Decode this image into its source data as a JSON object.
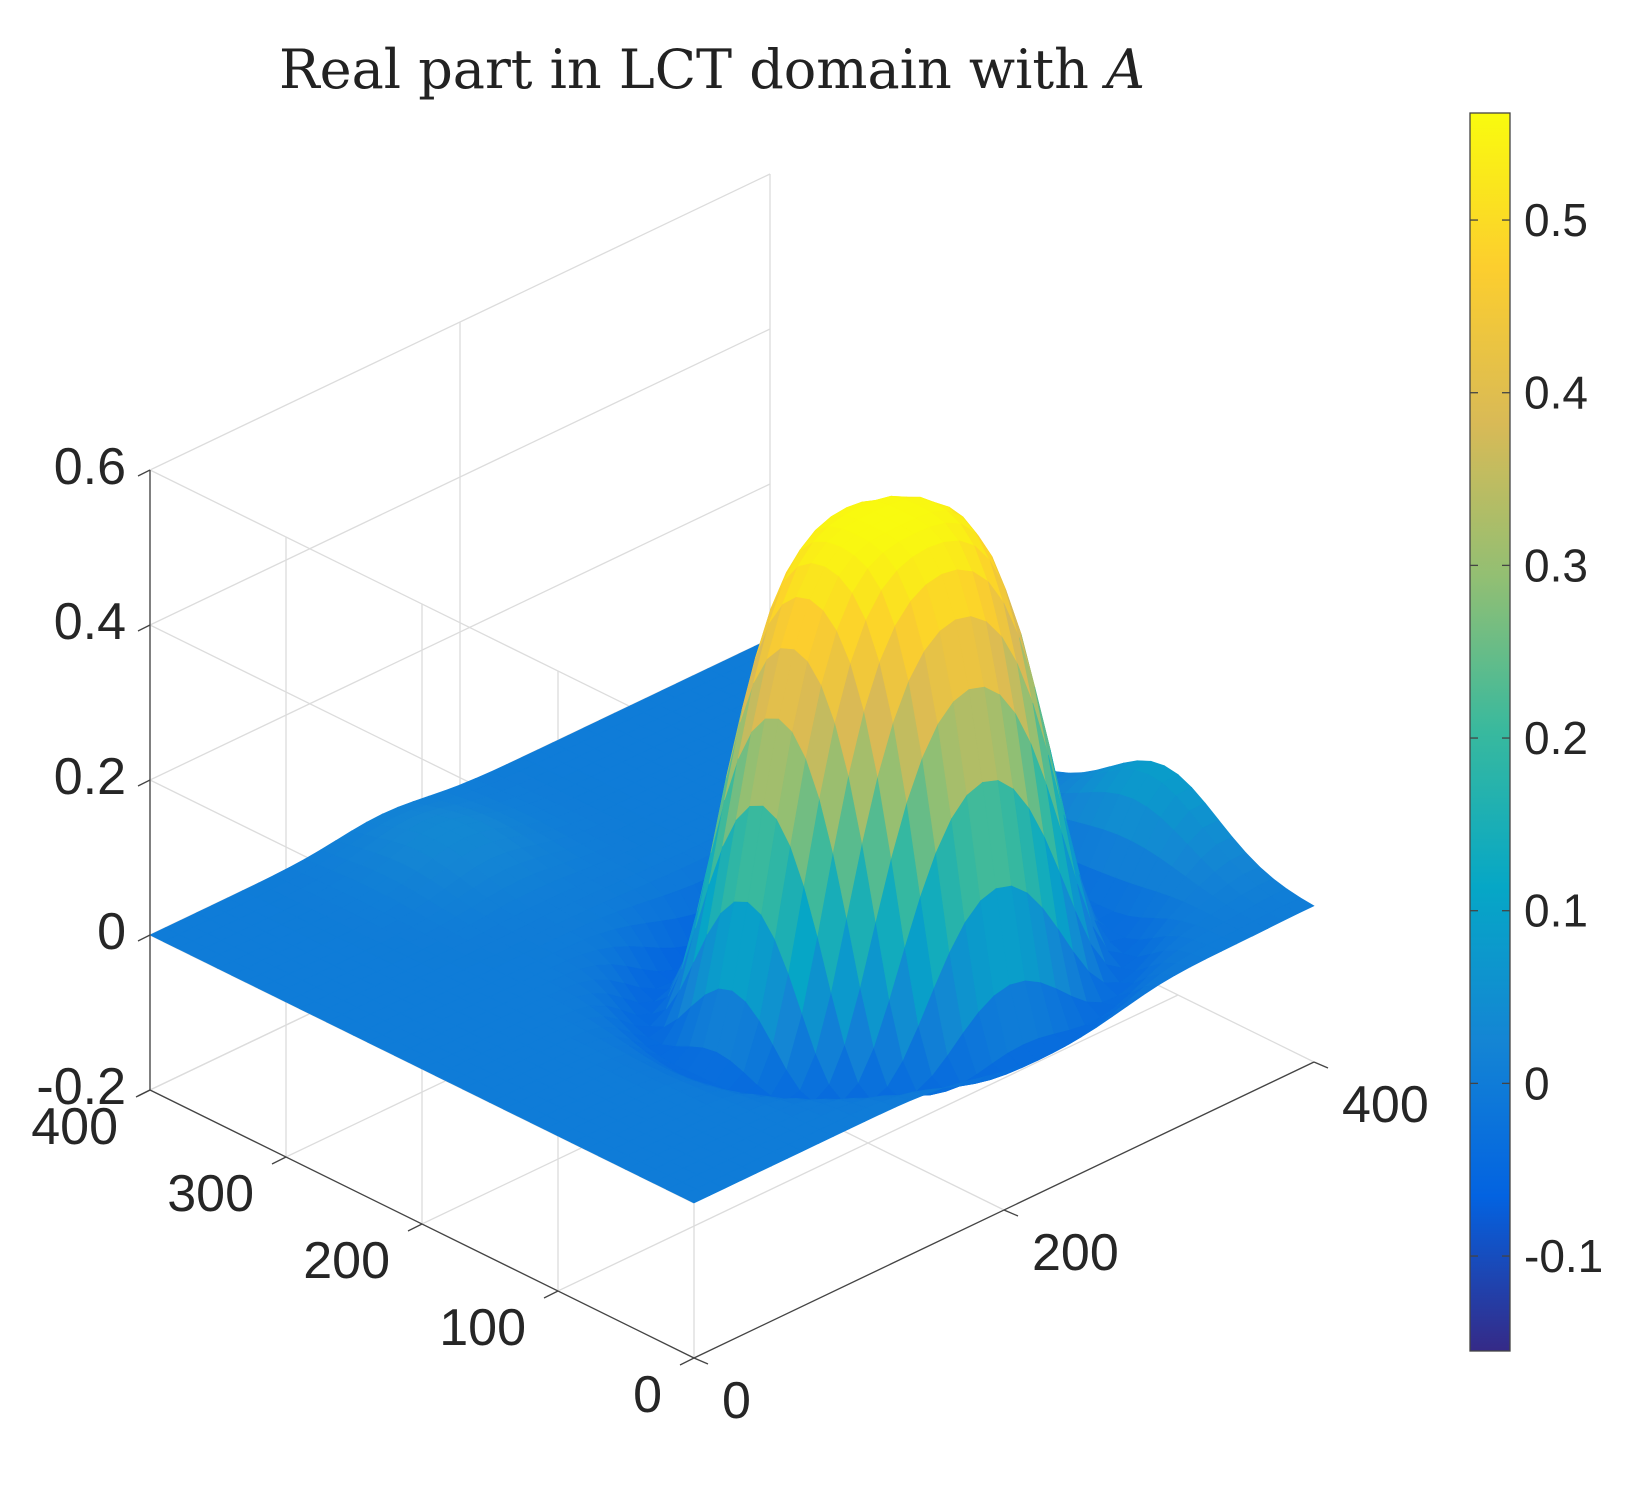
{
  "chart_data": {
    "type": "surface",
    "title": "Real part in LCT domain with ",
    "title_math": "A",
    "xlabel": "",
    "ylabel": "",
    "zlabel": "",
    "x_axis": {
      "range": [
        0,
        400
      ],
      "ticks": [
        0,
        200,
        400
      ],
      "tick_labels": [
        "0",
        "200",
        "400"
      ]
    },
    "y_axis": {
      "range": [
        0,
        400
      ],
      "ticks": [
        0,
        100,
        200,
        300,
        400
      ],
      "tick_labels": [
        "0",
        "100",
        "200",
        "300",
        "400"
      ]
    },
    "z_axis": {
      "range": [
        -0.2,
        0.6
      ],
      "ticks": [
        -0.2,
        0,
        0.2,
        0.4,
        0.6
      ],
      "tick_labels": [
        "-0.2",
        "0",
        "0.2",
        "0.4",
        "0.6"
      ]
    },
    "surface": {
      "peak_value": 0.56,
      "min_value": -0.15,
      "peak_location": {
        "x": 230,
        "y": 120
      },
      "grid_resolution": 41
    },
    "colorbar": {
      "range": [
        -0.155,
        0.562
      ],
      "colormap": "parula",
      "ticks": [
        -0.1,
        0,
        0.1,
        0.2,
        0.3,
        0.4,
        0.5
      ],
      "tick_labels": [
        "-0.1",
        "0",
        "0.1",
        "0.2",
        "0.3",
        "0.4",
        "0.5"
      ]
    },
    "grid": true,
    "colors": {
      "parula": [
        "#352a87",
        "#0363e1",
        "#1485d4",
        "#06a7c6",
        "#38b99e",
        "#92bf73",
        "#d9ba56",
        "#fcce2e",
        "#f9fb0e"
      ]
    }
  }
}
